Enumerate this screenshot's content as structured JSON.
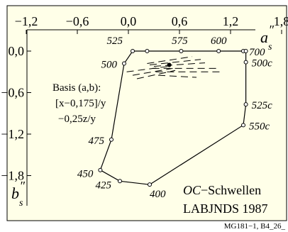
{
  "chart_data": {
    "type": "line",
    "xlabel": "a\"s",
    "ylabel": "b\"s",
    "xlim": [
      -1.2,
      1.8
    ],
    "ylim": [
      -2.0,
      0.3
    ],
    "x_ticks": [
      "−1,2",
      "−0,6",
      "0,0",
      "0,6",
      "1,2",
      "1,8"
    ],
    "y_ticks": [
      "0,0",
      "−0,6",
      "−1,2",
      "−1,8"
    ],
    "x_tick_values": [
      -1.2,
      -0.6,
      0.0,
      0.6,
      1.2,
      1.8
    ],
    "y_tick_values": [
      0.0,
      -0.6,
      -1.2,
      -1.8
    ],
    "series": [
      {
        "points": [
          {
            "label": "525",
            "x": 0.05,
            "y": 0.0
          },
          {
            "label": "",
            "x": 0.22,
            "y": 0.0
          },
          {
            "label": "575",
            "x": 0.62,
            "y": 0.0
          },
          {
            "label": "600",
            "x": 1.06,
            "y": 0.0
          },
          {
            "label": "700",
            "x": 1.35,
            "y": 0.0
          },
          {
            "label": "",
            "x": 1.38,
            "y": 0.0
          },
          {
            "label": "500c",
            "x": 1.38,
            "y": -0.16
          },
          {
            "label": "525c",
            "x": 1.38,
            "y": -0.77
          },
          {
            "label": "550c",
            "x": 1.35,
            "y": -1.07
          },
          {
            "label": "400",
            "x": 0.25,
            "y": -1.93
          },
          {
            "label": "425",
            "x": -0.1,
            "y": -1.88
          },
          {
            "label": "450",
            "x": -0.33,
            "y": -1.72
          },
          {
            "label": "475",
            "x": -0.2,
            "y": -1.28
          },
          {
            "label": "500",
            "x": -0.05,
            "y": -0.18
          }
        ]
      }
    ],
    "inner_lines": [
      {
        "x1": 0.22,
        "y1": -0.18,
        "x2": 0.75,
        "y2": -0.08
      },
      {
        "x1": 0.25,
        "y1": -0.2,
        "x2": 0.85,
        "y2": -0.12
      },
      {
        "x1": 0.3,
        "y1": -0.22,
        "x2": 0.9,
        "y2": -0.17
      },
      {
        "x1": 0.28,
        "y1": -0.25,
        "x2": 1.05,
        "y2": -0.25
      },
      {
        "x1": 0.32,
        "y1": -0.3,
        "x2": 1.1,
        "y2": -0.3
      },
      {
        "x1": 0.35,
        "y1": -0.35,
        "x2": 0.8,
        "y2": -0.38
      },
      {
        "x1": -0.02,
        "y1": -0.3,
        "x2": 0.48,
        "y2": -0.22
      },
      {
        "x1": 0.05,
        "y1": -0.35,
        "x2": 0.52,
        "y2": -0.25
      },
      {
        "x1": 0.1,
        "y1": -0.4,
        "x2": 0.55,
        "y2": -0.28
      }
    ],
    "center": {
      "x": 0.48,
      "y": -0.2
    },
    "annotations": {
      "basis_line1": "Basis (a,b):",
      "basis_line2": "[x−0,175]/y",
      "basis_line3": "−0,25z/y",
      "oc_title_prefix": "OC",
      "oc_title_suffix": "−Schwellen",
      "source": "LABJNDS 1987"
    },
    "footer": "MG181−1, B4_26_"
  },
  "colors": {
    "background": "#fffff0",
    "ink": "#000000",
    "outer": "#ffffff"
  }
}
